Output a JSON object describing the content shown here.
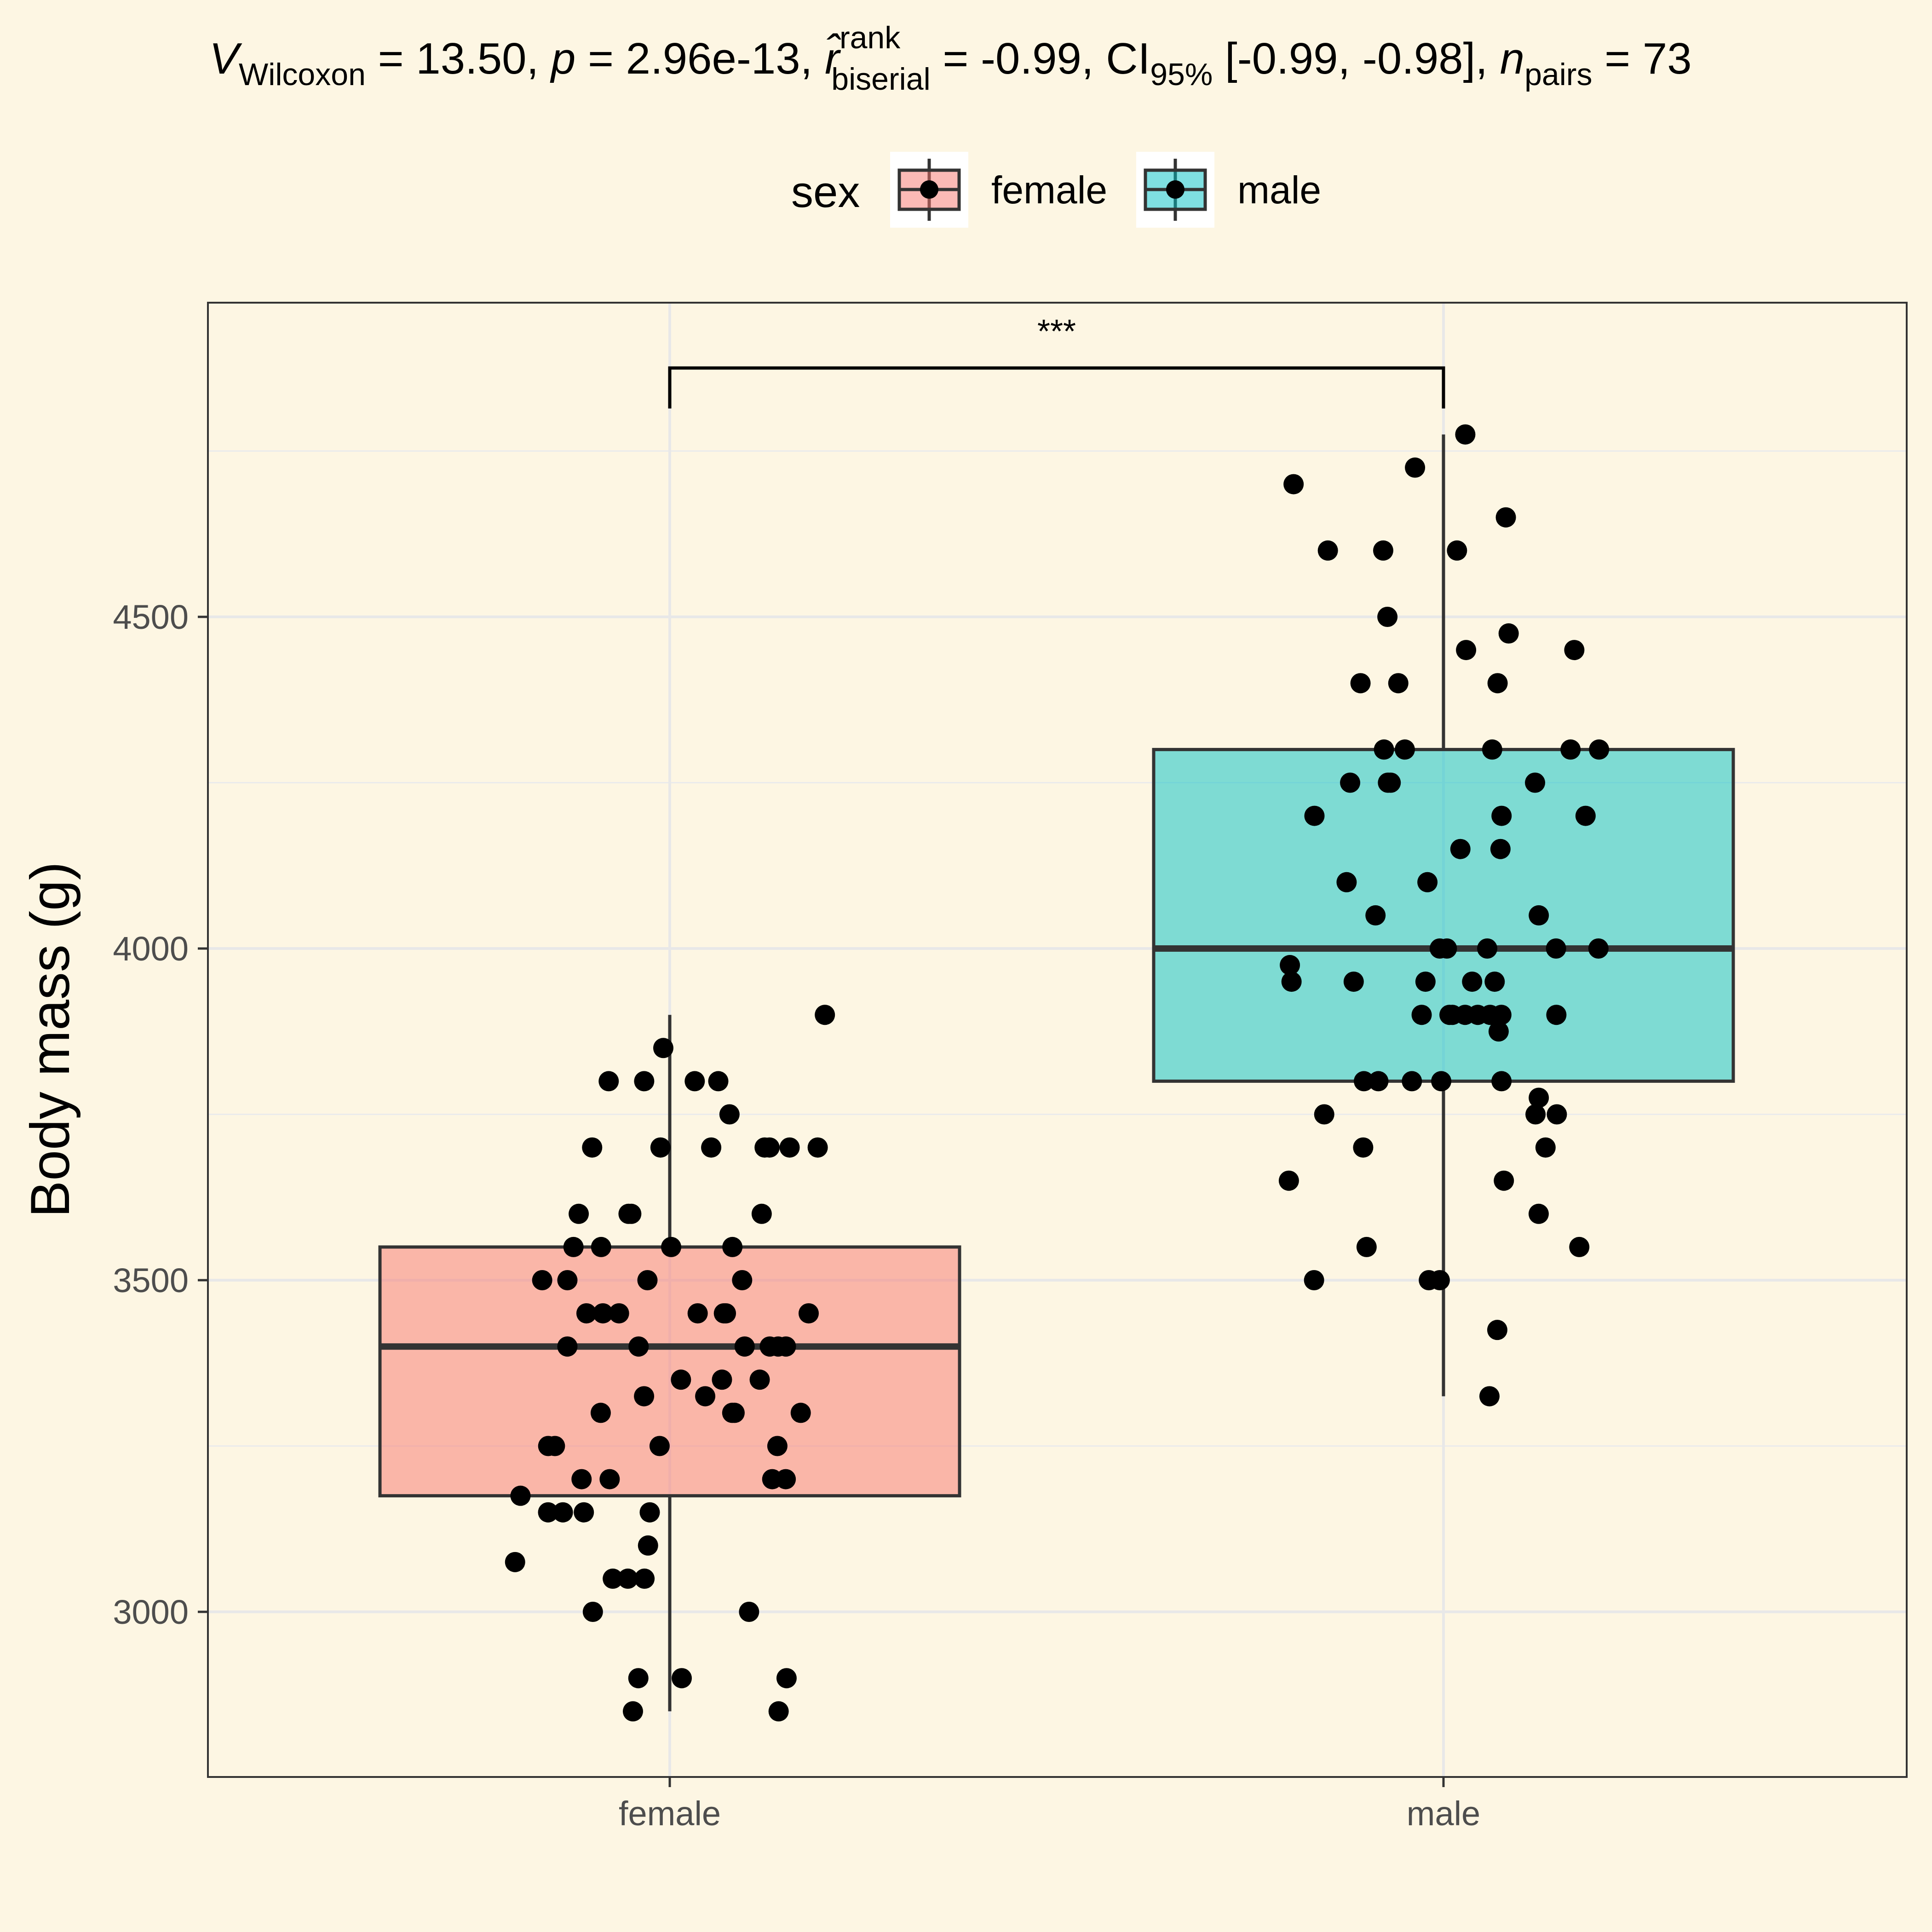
{
  "stat_label": {
    "v": "V",
    "v_sub": "Wilcoxon",
    "v_eq": " = 13.50, ",
    "p": "p",
    "p_eq": " = 2.96e-13, ",
    "r": "r̂",
    "r_sup": "rank",
    "r_sub": "biserial",
    "r_eq": " = -0.99, CI",
    "ci_sub": "95%",
    "ci_eq": " [-0.99, -0.98], ",
    "n": "n",
    "n_sub": "pairs",
    "n_eq": " = 73"
  },
  "legend": {
    "title": "sex",
    "items": [
      {
        "label": "female",
        "color": "#f8766d"
      },
      {
        "label": "male",
        "color": "#00bfc4"
      }
    ]
  },
  "significance": "***",
  "colors": {
    "background": "#fdf6e3",
    "panel_border": "#333333",
    "grid": "#ebebeb",
    "box_line": "#333333",
    "point": "#000000"
  },
  "chart_data": {
    "type": "box",
    "title": "",
    "xlabel": "",
    "ylabel": "Body mass (g)",
    "categories": [
      "female",
      "male"
    ],
    "ylim": [
      2750,
      4975
    ],
    "yticks": [
      3000,
      3500,
      4000,
      4500
    ],
    "grid": true,
    "legend_position": "top",
    "boxes": [
      {
        "name": "female",
        "min": 2850,
        "q1": 3175,
        "median": 3400,
        "q3": 3550,
        "max": 3900
      },
      {
        "name": "male",
        "min": 3325,
        "q1": 3800,
        "median": 4000,
        "q3": 4300,
        "max": 4775
      }
    ],
    "points": [
      {
        "category": "female",
        "values": [
          3800,
          3800,
          3700,
          3900,
          3450,
          3450,
          3400,
          3700,
          3300,
          3200,
          3400,
          3450,
          3600,
          3550,
          3800,
          3450,
          3600,
          3350,
          3400,
          3250,
          3250,
          3700,
          3500,
          3050,
          3300,
          3600,
          3300,
          3200,
          3050,
          3500,
          3400,
          3500,
          3150,
          3050,
          3600,
          3550,
          3700,
          3250,
          3000,
          3150,
          3150,
          2900,
          3700,
          3200,
          3350,
          3400,
          3550,
          3150,
          3450,
          3500,
          3750,
          2900,
          3300,
          3000,
          2850,
          3400,
          3800,
          3450,
          3100,
          3175,
          3700,
          3250,
          3350,
          3075,
          3450,
          3550,
          3325,
          3200,
          3700,
          3850,
          2900,
          2850,
          3325
        ]
      },
      {
        "category": "male",
        "values": [
          4650,
          4700,
          4150,
          4100,
          4000,
          3950,
          3800,
          4000,
          4200,
          4250,
          3900,
          4300,
          3900,
          3950,
          4000,
          3900,
          3800,
          4050,
          3800,
          4050,
          4250,
          4000,
          3800,
          4100,
          3900,
          4400,
          3750,
          4450,
          3650,
          3500,
          3550,
          4200,
          3700,
          3500,
          3600,
          4300,
          3900,
          4400,
          3775,
          4725,
          3900,
          3975,
          4250,
          4475,
          3700,
          3750,
          4300,
          3950,
          4000,
          4600,
          3650,
          3550,
          3900,
          3325,
          4200,
          3425,
          3500,
          4300,
          4450,
          4150,
          4600,
          4775,
          3950,
          3875,
          3950,
          4500,
          3900,
          4400,
          4300,
          3800,
          4250,
          3750,
          4600
        ]
      }
    ]
  }
}
